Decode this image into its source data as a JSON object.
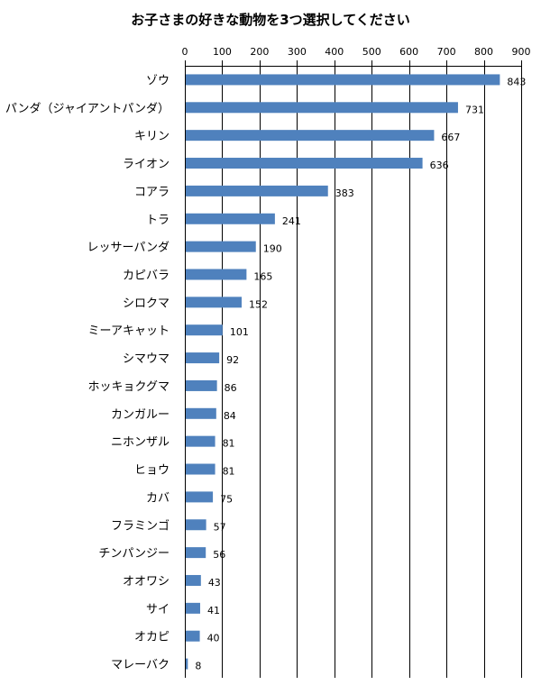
{
  "chart_data": {
    "type": "bar",
    "orientation": "horizontal",
    "title": "お子さまの好きな動物を3つ選択してください",
    "xlabel": "",
    "ylabel": "",
    "xlim": [
      0,
      900
    ],
    "ticks": [
      "0",
      "100",
      "200",
      "300",
      "400",
      "500",
      "600",
      "700",
      "800",
      "900"
    ],
    "tick_values": [
      0,
      100,
      200,
      300,
      400,
      500,
      600,
      700,
      800,
      900
    ],
    "axis_position": "top",
    "grid": true,
    "legend": "none",
    "bar_color": "#4f81bd",
    "categories": [
      "ゾウ",
      "パンダ（ジャイアントパンダ）",
      "キリン",
      "ライオン",
      "コアラ",
      "トラ",
      "レッサーパンダ",
      "カピバラ",
      "シロクマ",
      "ミーアキャット",
      "シマウマ",
      "ホッキョクグマ",
      "カンガルー",
      "ニホンザル",
      "ヒョウ",
      "カバ",
      "フラミンゴ",
      "チンパンジー",
      "オオワシ",
      "サイ",
      "オカピ",
      "マレーバク"
    ],
    "values": [
      843,
      731,
      667,
      636,
      383,
      241,
      190,
      165,
      152,
      101,
      92,
      86,
      84,
      81,
      81,
      75,
      57,
      56,
      43,
      41,
      40,
      8
    ],
    "value_labels": [
      "843",
      "731",
      "667",
      "636",
      "383",
      "241",
      "190",
      "165",
      "152",
      "101",
      "92",
      "86",
      "84",
      "81",
      "81",
      "75",
      "57",
      "56",
      "43",
      "41",
      "40",
      "8"
    ]
  }
}
